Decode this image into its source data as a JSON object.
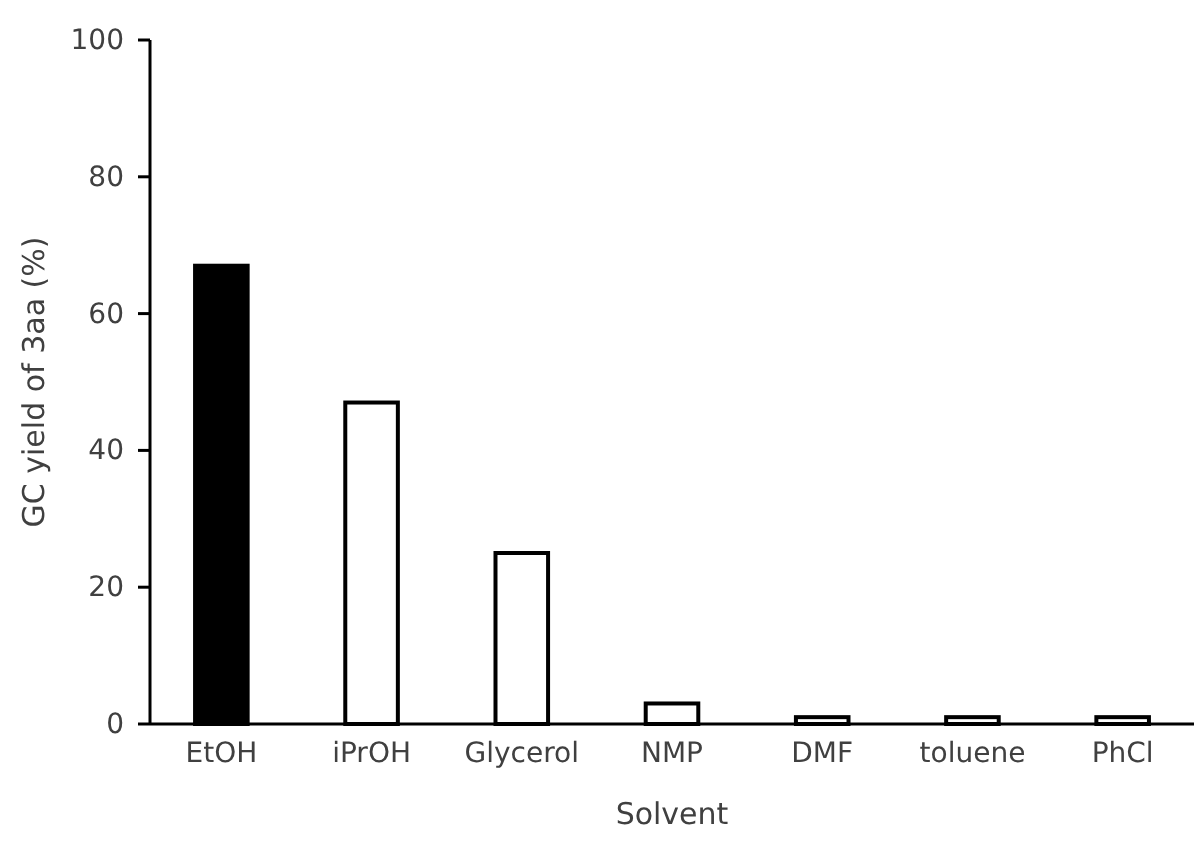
{
  "chart_data": {
    "type": "bar",
    "xlabel": "Solvent",
    "ylabel": "GC yield of 3aa (%)",
    "categories": [
      "EtOH",
      "iPrOH",
      "Glycerol",
      "NMP",
      "DMF",
      "toluene",
      "PhCl"
    ],
    "values": [
      67,
      47,
      25,
      3,
      1,
      1,
      1
    ],
    "colors": [
      "#000000",
      "#ffffff",
      "#ffffff",
      "#ffffff",
      "#ffffff",
      "#ffffff",
      "#ffffff"
    ],
    "ylim": [
      0,
      100
    ],
    "yticks": [
      0,
      20,
      40,
      60,
      80,
      100
    ],
    "grid": false
  }
}
